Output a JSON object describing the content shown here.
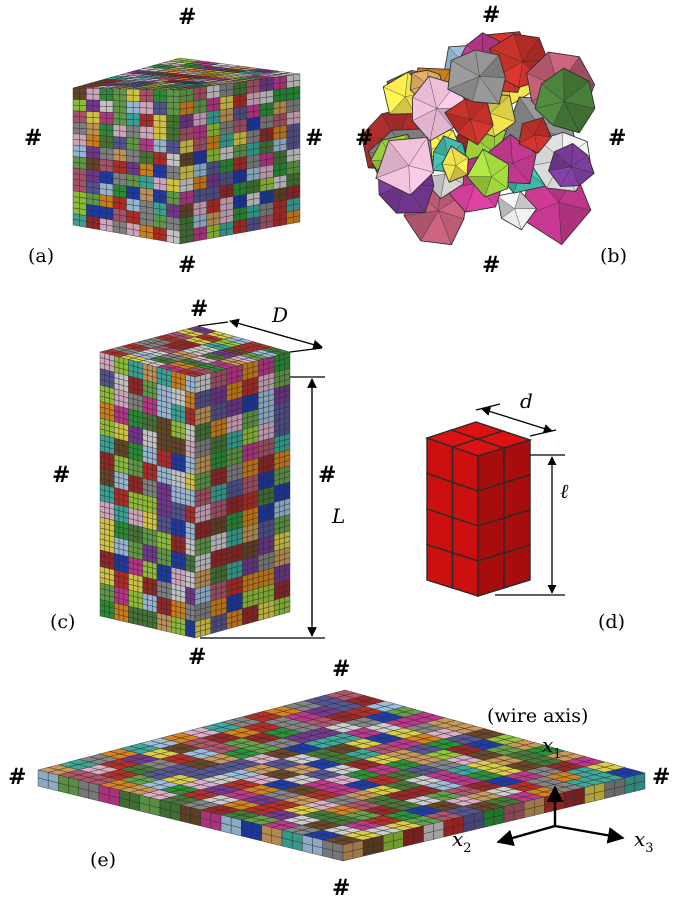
{
  "panel_labels": {
    "a": "(a)",
    "b": "(b)",
    "c": "(c)",
    "d": "(d)",
    "e": "(e)"
  },
  "periodic_marker": "#",
  "dimensions": {
    "D": "D",
    "L": "L",
    "d": "d",
    "ell": "ℓ"
  },
  "axes": {
    "wire_axis_label": "(wire axis)",
    "x1": {
      "var": "x",
      "sub": "1"
    },
    "x2": {
      "var": "x",
      "sub": "2"
    },
    "x3": {
      "var": "x",
      "sub": "3"
    }
  },
  "colors": {
    "grain_palette": [
      "#c0302a",
      "#2c9a3a",
      "#1f3fb5",
      "#c93a93",
      "#8c8c8c",
      "#d2a15e",
      "#6e4a2a",
      "#7a3b99",
      "#d8d8d8",
      "#a5c8e6",
      "#9bcf3c",
      "#e08a1c",
      "#b85a73",
      "#3fb2a4",
      "#e6d84a",
      "#5a5a9c",
      "#a02a2a",
      "#6aa84f",
      "#e4b7d0",
      "#4a7f3a"
    ],
    "pillar_red": "#cc1010",
    "mesh_line": "#2a2a2a"
  }
}
